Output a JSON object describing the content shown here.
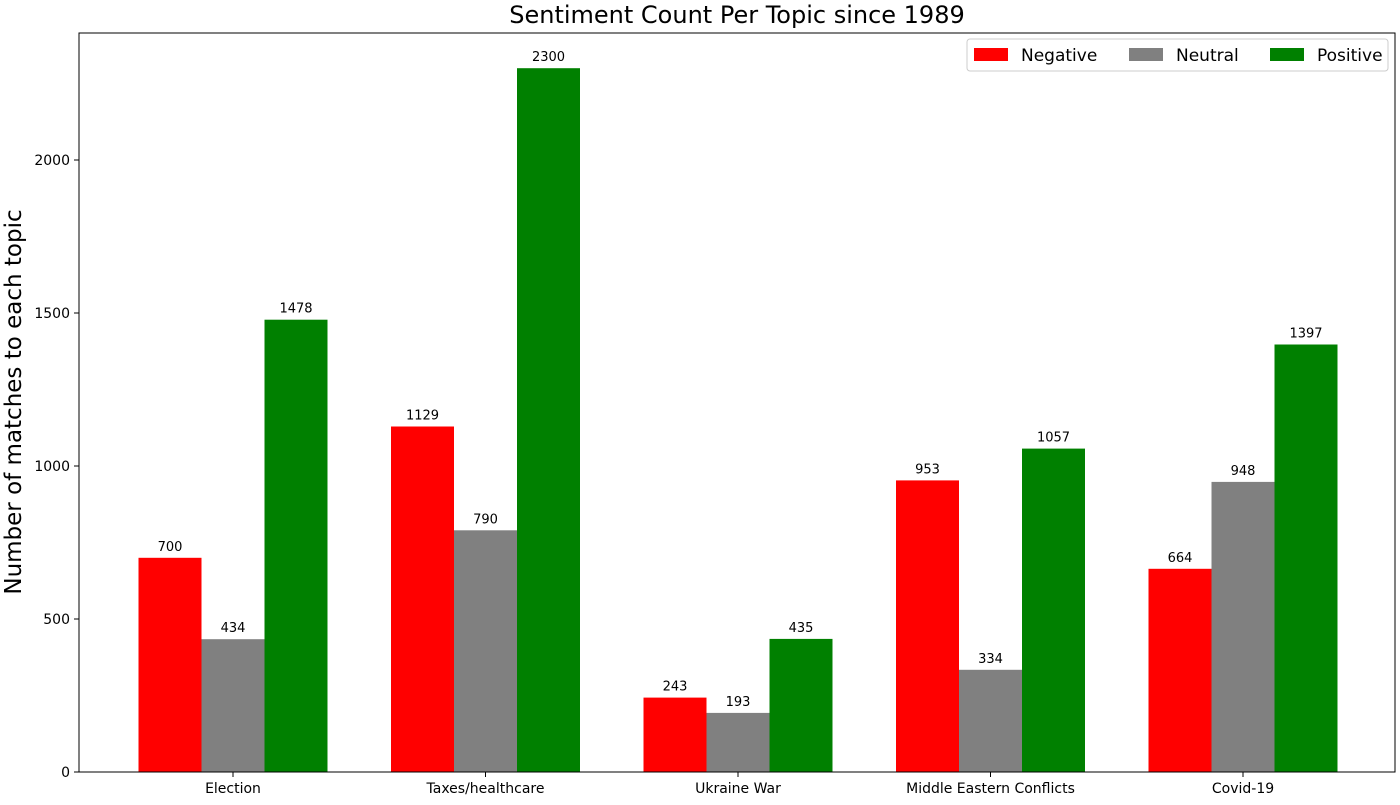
{
  "chart_data": {
    "type": "bar",
    "title": "Sentiment Count Per Topic since 1989",
    "xlabel": "",
    "ylabel": "Number of matches to each topic",
    "categories": [
      "Election",
      "Taxes/healthcare",
      "Ukraine War",
      "Middle Eastern Conflicts",
      "Covid-19"
    ],
    "series": [
      {
        "name": "Negative",
        "color": "#ff0000",
        "values": [
          700,
          1129,
          243,
          953,
          664
        ]
      },
      {
        "name": "Neutral",
        "color": "#808080",
        "values": [
          434,
          790,
          193,
          334,
          948
        ]
      },
      {
        "name": "Positive",
        "color": "#008000",
        "values": [
          1478,
          2300,
          435,
          1057,
          1397
        ]
      }
    ],
    "ylim": [
      0,
      2415
    ],
    "yticks": [
      0,
      500,
      1000,
      1500,
      2000
    ],
    "grid": false,
    "legend_position": "top-right",
    "legend_columns": 3,
    "data_labels": true
  }
}
